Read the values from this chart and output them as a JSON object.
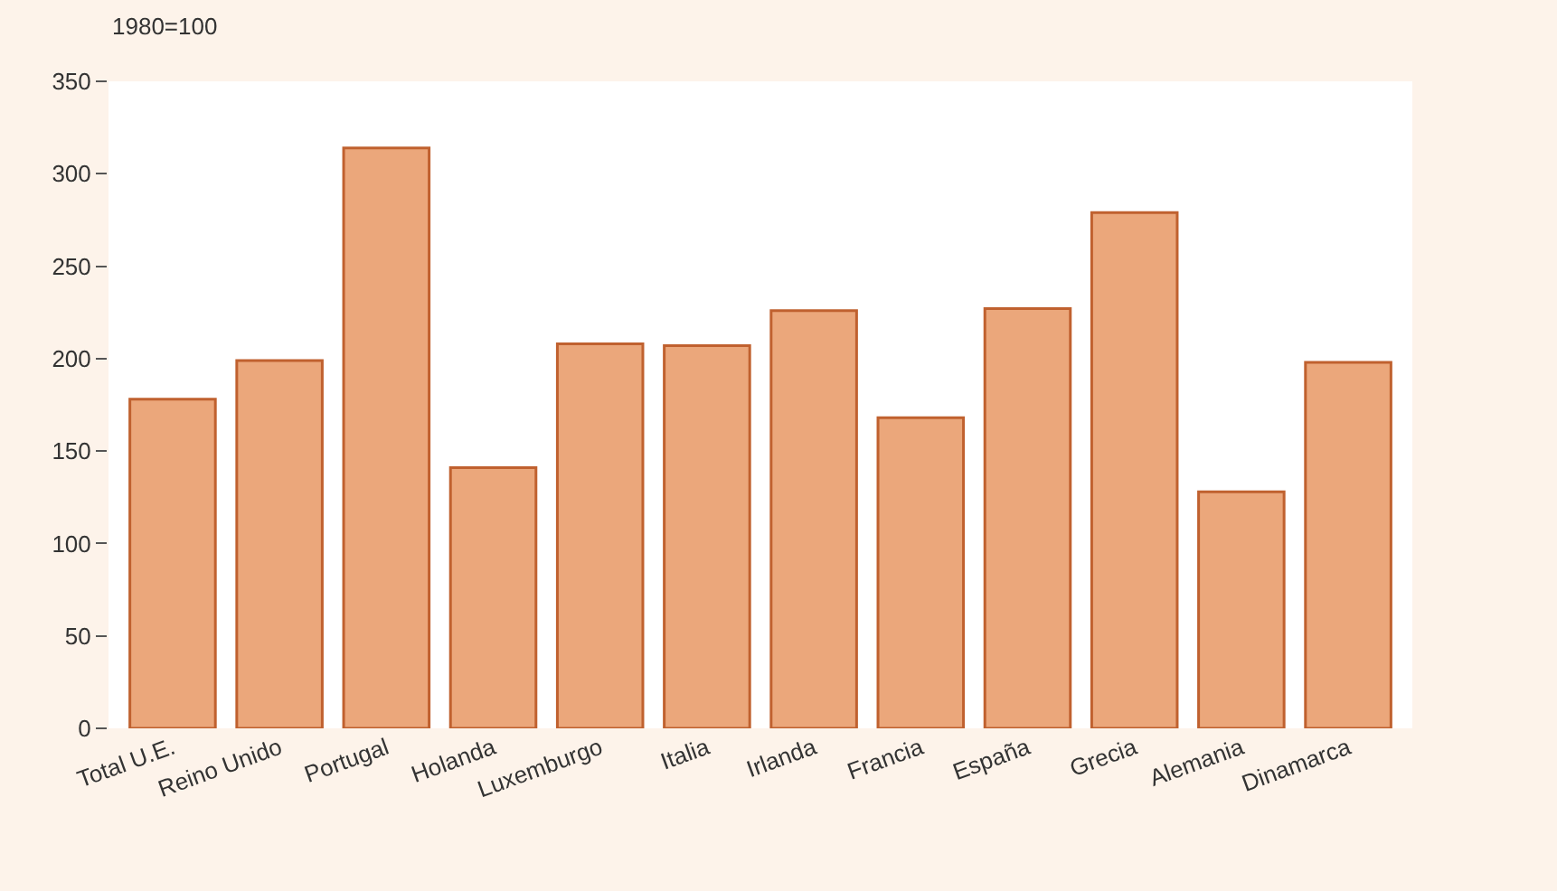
{
  "chart_data": {
    "type": "bar",
    "categories": [
      "Total U.E.",
      "Reino Unido",
      "Portugal",
      "Holanda",
      "Luxemburgo",
      "Italia",
      "Irlanda",
      "Francia",
      "España",
      "Grecia",
      "Alemania",
      "Dinamarca"
    ],
    "values": [
      178,
      199,
      314,
      141,
      208,
      207,
      226,
      168,
      227,
      279,
      128,
      198
    ],
    "color": "#eba77b",
    "ylim": [
      0,
      350
    ],
    "yticks": [
      0,
      50,
      100,
      150,
      200,
      250,
      300,
      350
    ],
    "annotations": [
      "1980=100"
    ]
  }
}
